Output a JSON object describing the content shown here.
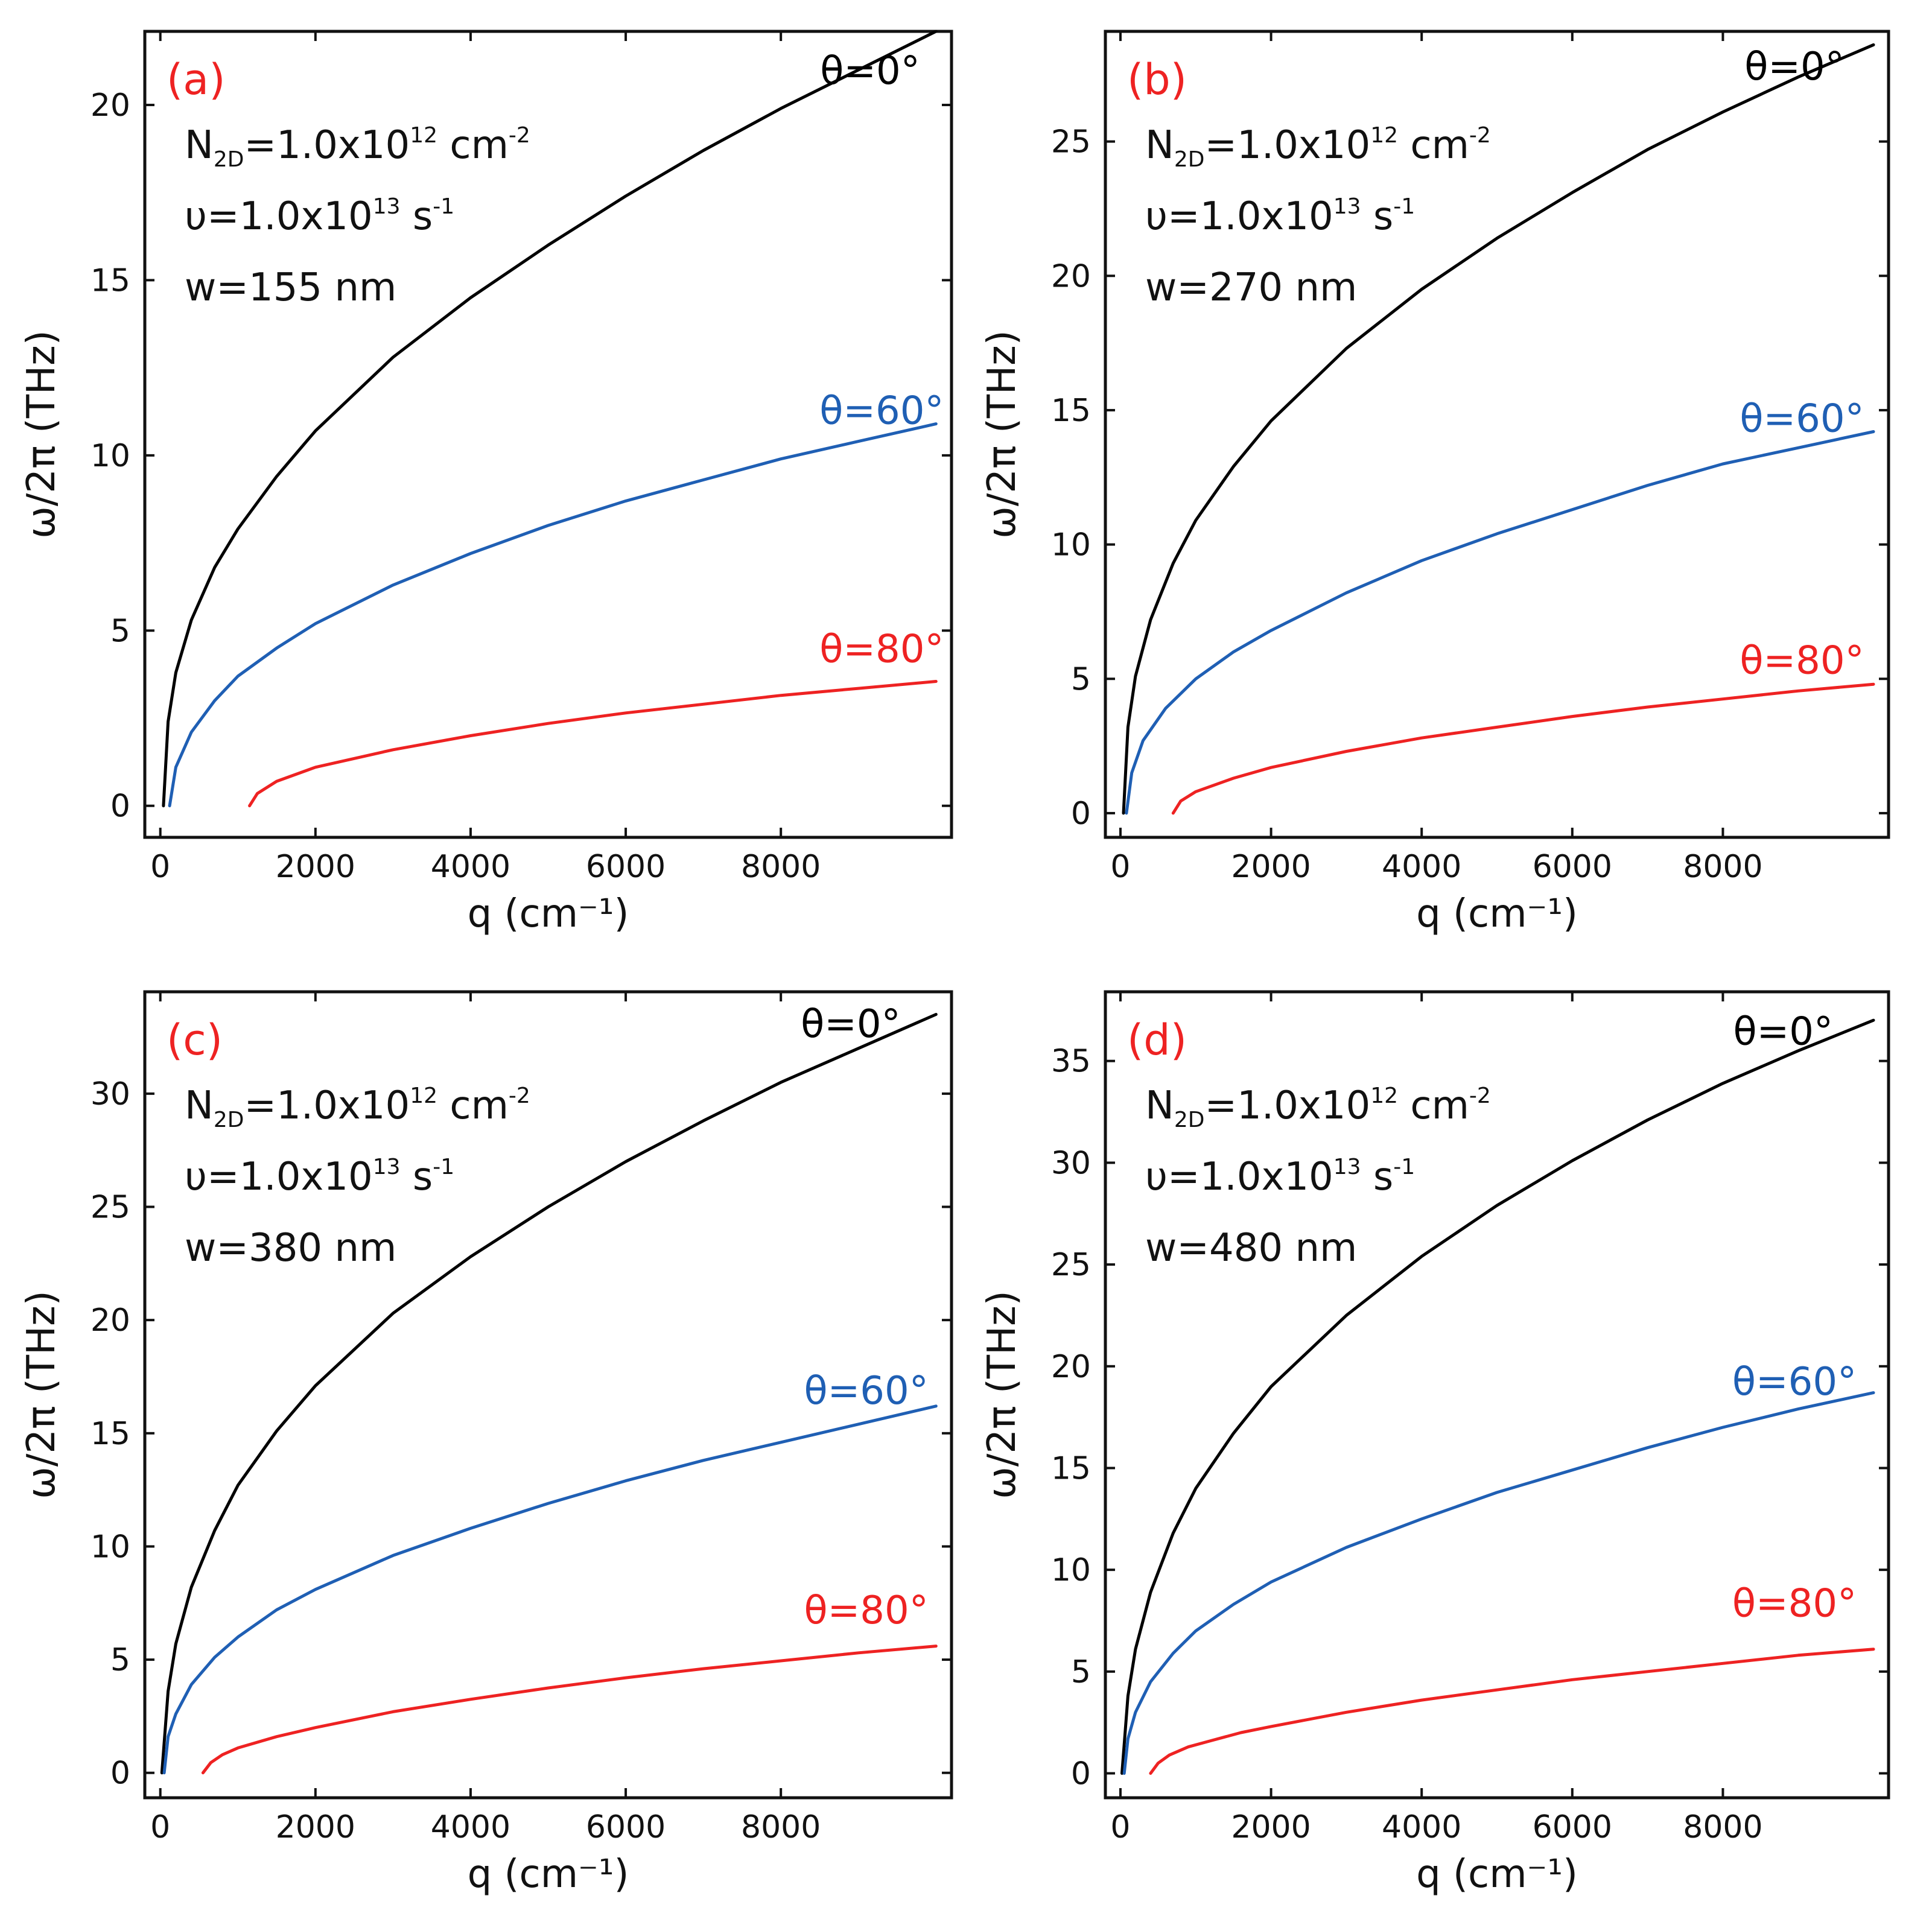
{
  "figure": {
    "colors": {
      "theta0": "#000000",
      "theta60": "#1f5fb4",
      "theta80": "#ee2222",
      "panel_label": "#ee2222"
    }
  },
  "chart_data": [
    {
      "type": "line",
      "panel_label": "(a)",
      "xlabel": "q (cm⁻¹)",
      "ylabel": "ω/2π (THz)",
      "xlim": [
        -200,
        10200
      ],
      "ylim": [
        -0.9,
        22.1
      ],
      "xticks": [
        0,
        2000,
        4000,
        6000,
        8000
      ],
      "yticks": [
        0,
        5,
        10,
        15,
        20
      ],
      "annotations": [
        "N2D=1.0x10^12 cm^-2",
        "υ=1.0x10^13 s^-1",
        "w=155 nm"
      ],
      "annotation_parts": {
        "n_base": "N",
        "n_sub": "2D",
        "n_eq": "=1.0x10",
        "n_exp": "12",
        "n_unit": " cm",
        "n_unit_exp": "-2",
        "u_prefix": "υ=1.0x10",
        "u_exp": "13",
        "u_unit": " s",
        "u_unit_exp": "-1",
        "w": "w=155 nm"
      },
      "series": [
        {
          "name": "θ=0°",
          "color_key": "theta0",
          "x": [
            40,
            100,
            200,
            400,
            700,
            1000,
            1500,
            2000,
            3000,
            4000,
            5000,
            6000,
            7000,
            8000,
            9000,
            10000
          ],
          "y": [
            0,
            2.4,
            3.8,
            5.3,
            6.8,
            7.9,
            9.4,
            10.7,
            12.8,
            14.5,
            16.0,
            17.4,
            18.7,
            19.9,
            21.0,
            22.1
          ]
        },
        {
          "name": "θ=60°",
          "color_key": "theta60",
          "x": [
            120,
            200,
            400,
            700,
            1000,
            1500,
            2000,
            3000,
            4000,
            5000,
            6000,
            7000,
            8000,
            9000,
            10000
          ],
          "y": [
            0,
            1.1,
            2.1,
            3.0,
            3.7,
            4.5,
            5.2,
            6.3,
            7.2,
            8.0,
            8.7,
            9.3,
            9.9,
            10.4,
            10.9
          ]
        },
        {
          "name": "θ=80°",
          "color_key": "theta80",
          "x": [
            1150,
            1250,
            1500,
            2000,
            3000,
            4000,
            5000,
            6000,
            7000,
            8000,
            9000,
            10000
          ],
          "y": [
            0,
            0.35,
            0.7,
            1.1,
            1.6,
            2.0,
            2.35,
            2.65,
            2.9,
            3.15,
            3.35,
            3.55
          ]
        }
      ],
      "curve_labels": [
        {
          "text": "θ=0°",
          "color_key": "theta0",
          "at": [
            9150,
            20.6
          ]
        },
        {
          "text": "θ=60°",
          "color_key": "theta60",
          "at": [
            9300,
            10.9
          ]
        },
        {
          "text": "θ=80°",
          "color_key": "theta80",
          "at": [
            9300,
            4.1
          ]
        }
      ]
    },
    {
      "type": "line",
      "panel_label": "(b)",
      "xlabel": "q (cm⁻¹)",
      "ylabel": "ω/2π (THz)",
      "xlim": [
        -200,
        10200
      ],
      "ylim": [
        -0.9,
        29.1
      ],
      "xticks": [
        0,
        2000,
        4000,
        6000,
        8000
      ],
      "yticks": [
        0,
        5,
        10,
        15,
        20,
        25
      ],
      "annotations": [
        "N2D=1.0x10^12 cm^-2",
        "υ=1.0x10^13 s^-1",
        "w=270 nm"
      ],
      "annotation_parts": {
        "n_base": "N",
        "n_sub": "2D",
        "n_eq": "=1.0x10",
        "n_exp": "12",
        "n_unit": " cm",
        "n_unit_exp": "-2",
        "u_prefix": "υ=1.0x10",
        "u_exp": "13",
        "u_unit": " s",
        "u_unit_exp": "-1",
        "w": "w=270 nm"
      },
      "series": [
        {
          "name": "θ=0°",
          "color_key": "theta0",
          "x": [
            40,
            100,
            200,
            400,
            700,
            1000,
            1500,
            2000,
            3000,
            4000,
            5000,
            6000,
            7000,
            8000,
            9000,
            10000
          ],
          "y": [
            0,
            3.2,
            5.1,
            7.2,
            9.3,
            10.9,
            12.9,
            14.6,
            17.3,
            19.5,
            21.4,
            23.1,
            24.7,
            26.1,
            27.4,
            28.6
          ]
        },
        {
          "name": "θ=60°",
          "color_key": "theta60",
          "x": [
            80,
            150,
            300,
            600,
            1000,
            1500,
            2000,
            3000,
            4000,
            5000,
            6000,
            7000,
            8000,
            9000,
            10000
          ],
          "y": [
            0,
            1.5,
            2.7,
            3.9,
            5.0,
            6.0,
            6.8,
            8.2,
            9.4,
            10.4,
            11.3,
            12.2,
            13.0,
            13.6,
            14.2
          ]
        },
        {
          "name": "θ=80°",
          "color_key": "theta80",
          "x": [
            700,
            800,
            1000,
            1500,
            2000,
            3000,
            4000,
            5000,
            6000,
            7000,
            8000,
            9000,
            10000
          ],
          "y": [
            0,
            0.45,
            0.8,
            1.3,
            1.7,
            2.3,
            2.8,
            3.2,
            3.6,
            3.95,
            4.25,
            4.55,
            4.8
          ]
        }
      ],
      "curve_labels": [
        {
          "text": "θ=0°",
          "color_key": "theta0",
          "at": [
            8950,
            27.3
          ]
        },
        {
          "text": "θ=60°",
          "color_key": "theta60",
          "at": [
            9050,
            14.2
          ]
        },
        {
          "text": "θ=80°",
          "color_key": "theta80",
          "at": [
            9050,
            5.2
          ]
        }
      ]
    },
    {
      "type": "line",
      "panel_label": "(c)",
      "xlabel": "q (cm⁻¹)",
      "ylabel": "ω/2π (THz)",
      "xlim": [
        -200,
        10200
      ],
      "ylim": [
        -1.1,
        34.5
      ],
      "xticks": [
        0,
        2000,
        4000,
        6000,
        8000
      ],
      "yticks": [
        0,
        5,
        10,
        15,
        20,
        25,
        30
      ],
      "annotations": [
        "N2D=1.0x10^12 cm^-2",
        "υ=1.0x10^13 s^-1",
        "w=380 nm"
      ],
      "annotation_parts": {
        "n_base": "N",
        "n_sub": "2D",
        "n_eq": "=1.0x10",
        "n_exp": "12",
        "n_unit": " cm",
        "n_unit_exp": "-2",
        "u_prefix": "υ=1.0x10",
        "u_exp": "13",
        "u_unit": " s",
        "u_unit_exp": "-1",
        "w": "w=380 nm"
      },
      "series": [
        {
          "name": "θ=0°",
          "color_key": "theta0",
          "x": [
            20,
            100,
            200,
            400,
            700,
            1000,
            1500,
            2000,
            3000,
            4000,
            5000,
            6000,
            7000,
            8000,
            9000,
            10000
          ],
          "y": [
            0,
            3.6,
            5.7,
            8.2,
            10.7,
            12.7,
            15.1,
            17.1,
            20.3,
            22.8,
            25.0,
            27.0,
            28.8,
            30.5,
            32.0,
            33.5
          ]
        },
        {
          "name": "θ=60°",
          "color_key": "theta60",
          "x": [
            50,
            100,
            200,
            400,
            700,
            1000,
            1500,
            2000,
            3000,
            4000,
            5000,
            6000,
            7000,
            8000,
            9000,
            10000
          ],
          "y": [
            0,
            1.6,
            2.6,
            3.9,
            5.1,
            6.0,
            7.2,
            8.1,
            9.6,
            10.8,
            11.9,
            12.9,
            13.8,
            14.6,
            15.4,
            16.2
          ]
        },
        {
          "name": "θ=80°",
          "color_key": "theta80",
          "x": [
            550,
            650,
            800,
            1000,
            1500,
            2000,
            3000,
            4000,
            5000,
            6000,
            7000,
            8000,
            9000,
            10000
          ],
          "y": [
            0,
            0.45,
            0.8,
            1.1,
            1.6,
            2.0,
            2.7,
            3.25,
            3.75,
            4.2,
            4.6,
            4.95,
            5.3,
            5.6
          ]
        }
      ],
      "curve_labels": [
        {
          "text": "θ=0°",
          "color_key": "theta0",
          "at": [
            8900,
            32.5
          ]
        },
        {
          "text": "θ=60°",
          "color_key": "theta60",
          "at": [
            9100,
            16.3
          ]
        },
        {
          "text": "θ=80°",
          "color_key": "theta80",
          "at": [
            9100,
            6.6
          ]
        }
      ]
    },
    {
      "type": "line",
      "panel_label": "(d)",
      "xlabel": "q (cm⁻¹)",
      "ylabel": "ω/2π (THz)",
      "xlim": [
        -200,
        10200
      ],
      "ylim": [
        -1.2,
        38.4
      ],
      "xticks": [
        0,
        2000,
        4000,
        6000,
        8000
      ],
      "yticks": [
        0,
        5,
        10,
        15,
        20,
        25,
        30,
        35
      ],
      "annotations": [
        "N2D=1.0x10^12 cm^-2",
        "υ=1.0x10^13 s^-1",
        "w=480 nm"
      ],
      "annotation_parts": {
        "n_base": "N",
        "n_sub": "2D",
        "n_eq": "=1.0x10",
        "n_exp": "12",
        "n_unit": " cm",
        "n_unit_exp": "-2",
        "u_prefix": "υ=1.0x10",
        "u_exp": "13",
        "u_unit": " s",
        "u_unit_exp": "-1",
        "w": "w=480 nm"
      },
      "series": [
        {
          "name": "θ=0°",
          "color_key": "theta0",
          "x": [
            20,
            100,
            200,
            400,
            700,
            1000,
            1500,
            2000,
            3000,
            4000,
            5000,
            6000,
            7000,
            8000,
            9000,
            10000
          ],
          "y": [
            0,
            3.8,
            6.1,
            8.9,
            11.8,
            14.0,
            16.7,
            19.0,
            22.5,
            25.4,
            27.9,
            30.1,
            32.1,
            33.9,
            35.5,
            37.0
          ]
        },
        {
          "name": "θ=60°",
          "color_key": "theta60",
          "x": [
            50,
            100,
            200,
            400,
            700,
            1000,
            1500,
            2000,
            3000,
            4000,
            5000,
            6000,
            7000,
            8000,
            9000,
            10000
          ],
          "y": [
            0,
            1.7,
            3.0,
            4.5,
            5.9,
            7.0,
            8.3,
            9.4,
            11.1,
            12.5,
            13.8,
            14.9,
            16.0,
            17.0,
            17.9,
            18.7
          ]
        },
        {
          "name": "θ=80°",
          "color_key": "theta80",
          "x": [
            400,
            500,
            650,
            900,
            1200,
            1600,
            2000,
            3000,
            4000,
            5000,
            6000,
            7000,
            8000,
            9000,
            10000
          ],
          "y": [
            0,
            0.5,
            0.9,
            1.3,
            1.6,
            2.0,
            2.3,
            3.0,
            3.6,
            4.1,
            4.6,
            5.0,
            5.4,
            5.8,
            6.1
          ]
        }
      ],
      "curve_labels": [
        {
          "text": "θ=0°",
          "color_key": "theta0",
          "at": [
            8800,
            35.8
          ]
        },
        {
          "text": "θ=60°",
          "color_key": "theta60",
          "at": [
            8950,
            18.6
          ]
        },
        {
          "text": "θ=80°",
          "color_key": "theta80",
          "at": [
            8950,
            7.7
          ]
        }
      ]
    }
  ]
}
